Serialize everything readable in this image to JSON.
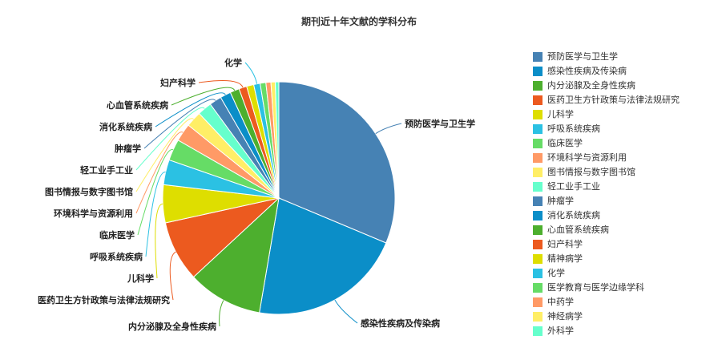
{
  "chart_data": {
    "type": "pie",
    "title": "期刊近十年文献的学科分布",
    "legend_position": "right",
    "slices": [
      {
        "label": "预防医学与卫生学",
        "value": 31.5,
        "color": "#4682b4"
      },
      {
        "label": "感染性疾病及传染病",
        "value": 21.5,
        "color": "#0b8ec8"
      },
      {
        "label": "内分泌腺及全身性疾病",
        "value": 10.5,
        "color": "#4daf2e"
      },
      {
        "label": "医药卫生方针政策与法律法规研究",
        "value": 8.5,
        "color": "#ec5a1f"
      },
      {
        "label": "儿科学",
        "value": 5.3,
        "color": "#dede00"
      },
      {
        "label": "呼吸系统疾病",
        "value": 3.5,
        "color": "#2bc1e3"
      },
      {
        "label": "临床医学",
        "value": 3.0,
        "color": "#66dc66"
      },
      {
        "label": "环境科学与资源利用",
        "value": 2.5,
        "color": "#ff9a66"
      },
      {
        "label": "图书情报与数字图书馆",
        "value": 2.2,
        "color": "#ffee66"
      },
      {
        "label": "轻工业手工业",
        "value": 2.0,
        "color": "#66ffcc"
      },
      {
        "label": "肿瘤学",
        "value": 1.7,
        "color": "#4682b4"
      },
      {
        "label": "消化系统疾病",
        "value": 1.5,
        "color": "#0b8ec8"
      },
      {
        "label": "心血管系统疾病",
        "value": 1.3,
        "color": "#4daf2e"
      },
      {
        "label": "妇产科学",
        "value": 1.1,
        "color": "#ec5a1f"
      },
      {
        "label": "精神病学",
        "value": 1.0,
        "color": "#dede00"
      },
      {
        "label": "化学",
        "value": 0.9,
        "color": "#2bc1e3"
      },
      {
        "label": "医学教育与医学边缘学科",
        "value": 0.8,
        "color": "#66dc66"
      },
      {
        "label": "中药学",
        "value": 0.7,
        "color": "#ff9a66"
      },
      {
        "label": "神经病学",
        "value": 0.6,
        "color": "#ffee66"
      },
      {
        "label": "外科学",
        "value": 0.5,
        "color": "#66ffcc"
      }
    ],
    "outer_labels": [
      "预防医学与卫生学",
      "感染性疾病及传染病",
      "内分泌腺及全身性疾病",
      "医药卫生方针政策与法律法规研究",
      "儿科学",
      "呼吸系统疾病",
      "临床医学",
      "环境科学与资源利用",
      "图书情报与数字图书馆",
      "轻工业手工业",
      "肿瘤学",
      "消化系统疾病",
      "心血管系统疾病",
      "妇产科学",
      "化学"
    ]
  }
}
